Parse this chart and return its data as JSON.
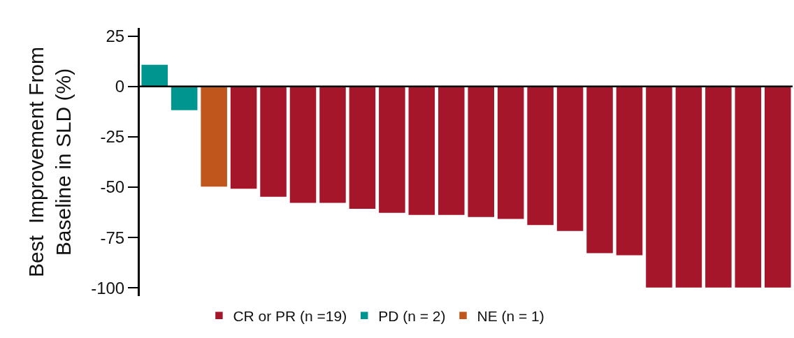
{
  "chart_data": {
    "type": "bar",
    "ylabel": "Best  Improvement From Baseline in SLD (%)",
    "categories": [
      null,
      null,
      null,
      null,
      null,
      null,
      null,
      null,
      null,
      null,
      null,
      null,
      null,
      null,
      null,
      null,
      null,
      null,
      null,
      null,
      null,
      null
    ],
    "series": [
      {
        "name": "CR or PR (n =19)",
        "color": "#a6162b",
        "values": [
          null,
          null,
          null,
          -51,
          -55,
          -58,
          -58,
          -61,
          -63,
          -64,
          -64,
          -65,
          -66,
          -69,
          -72,
          -83,
          -84,
          -100,
          -100,
          -100,
          -100,
          -100
        ]
      },
      {
        "name": "PD (n = 2)",
        "color": "#009690",
        "values": [
          11,
          -12,
          null,
          null,
          null,
          null,
          null,
          null,
          null,
          null,
          null,
          null,
          null,
          null,
          null,
          null,
          null,
          null,
          null,
          null,
          null,
          null
        ]
      },
      {
        "name": "NE (n = 1)",
        "color": "#c0561b",
        "values": [
          null,
          null,
          -50,
          null,
          null,
          null,
          null,
          null,
          null,
          null,
          null,
          null,
          null,
          null,
          null,
          null,
          null,
          null,
          null,
          null,
          null,
          null
        ]
      }
    ],
    "ylim": [
      -104,
      29
    ],
    "yticks": [
      25,
      0,
      -25,
      -50,
      -75,
      -100
    ],
    "grid": false,
    "ref_lines": [
      {
        "axis": "y",
        "value": 0,
        "color": "#000000"
      }
    ],
    "legend": "bottom",
    "tick_labels": "y"
  }
}
